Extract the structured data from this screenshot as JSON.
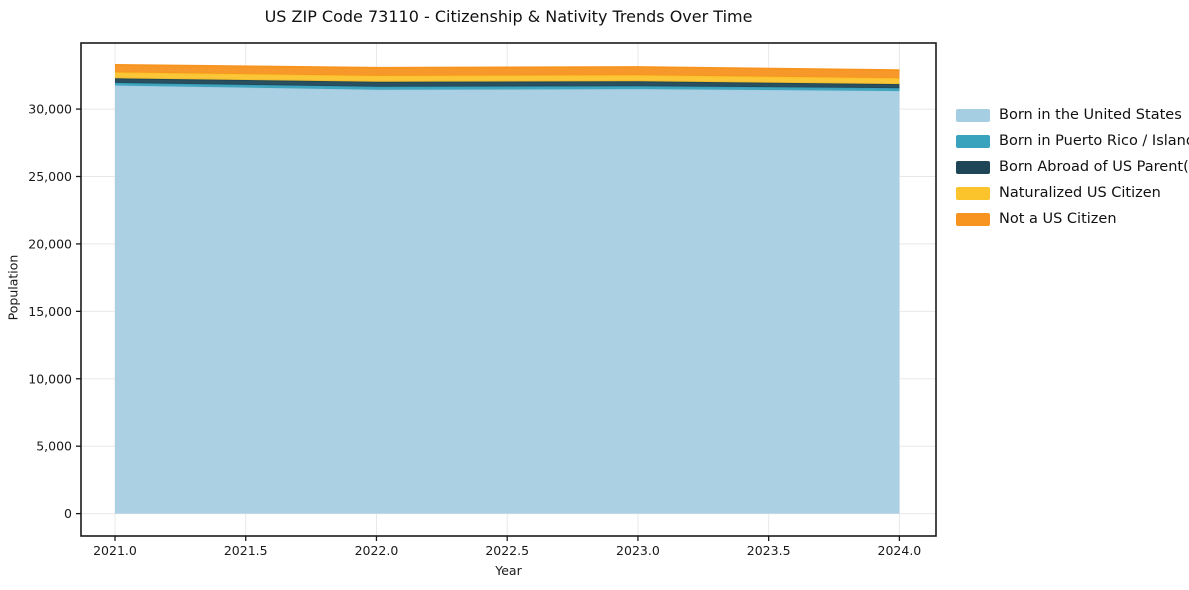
{
  "title": "US ZIP Code 73110 - Citizenship & Nativity Trends Over Time",
  "axes": {
    "xlabel": "Year",
    "ylabel": "Population",
    "xtick_labels": [
      "2021.0",
      "2021.5",
      "2022.0",
      "2022.5",
      "2023.0",
      "2023.5",
      "2024.0"
    ],
    "ytick_labels": [
      "0",
      "5,000",
      "10,000",
      "15,000",
      "20,000",
      "25,000",
      "30,000"
    ]
  },
  "legend": {
    "position": "right-outside",
    "items": [
      {
        "label": "Born in the United States",
        "color": "#a6cee3"
      },
      {
        "label": "Born in Puerto Rico / Islands",
        "color": "#39a2bc"
      },
      {
        "label": "Born Abroad of US Parent(s)",
        "color": "#1f4656"
      },
      {
        "label": "Naturalized US Citizen",
        "color": "#fbc32c"
      },
      {
        "label": "Not a US Citizen",
        "color": "#f7941f"
      }
    ]
  },
  "colors": {
    "background": "#ffffff",
    "gridline": "#e8e8e8",
    "frame": "#1a1a1a",
    "tick_text": "#1a1a1a"
  },
  "chart_data": {
    "type": "area",
    "stacked": true,
    "title": "US ZIP Code 73110 - Citizenship & Nativity Trends Over Time",
    "xlabel": "Year",
    "ylabel": "Population",
    "x": [
      2021,
      2022,
      2023,
      2024
    ],
    "series": [
      {
        "name": "Born in the United States",
        "color": "#a6cee3",
        "values": [
          31750,
          31430,
          31480,
          31330
        ]
      },
      {
        "name": "Born in Puerto Rico / Islands",
        "color": "#39a2bc",
        "values": [
          190,
          220,
          220,
          220
        ]
      },
      {
        "name": "Born Abroad of US Parent(s)",
        "color": "#1f4656",
        "values": [
          340,
          370,
          370,
          300
        ]
      },
      {
        "name": "Naturalized US Citizen",
        "color": "#fbc32c",
        "values": [
          440,
          440,
          440,
          440
        ]
      },
      {
        "name": "Not a US Citizen",
        "color": "#f7941f",
        "values": [
          550,
          590,
          600,
          590
        ]
      }
    ],
    "stacked_totals": [
      33270,
      33050,
      33110,
      32880
    ],
    "xlim": [
      2020.87,
      2024.14
    ],
    "ylim": [
      -1660,
      34900
    ],
    "xtick_values": [
      2021.0,
      2021.5,
      2022.0,
      2022.5,
      2023.0,
      2023.5,
      2024.0
    ],
    "ytick_values": [
      0,
      5000,
      10000,
      15000,
      20000,
      25000,
      30000
    ],
    "grid": true,
    "legend_position": "right"
  }
}
